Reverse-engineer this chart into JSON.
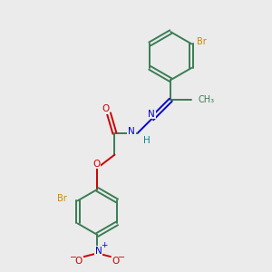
{
  "bg_color": "#ebebeb",
  "bond_color": "#3a7d54",
  "bond_width": 1.4,
  "atom_colors": {
    "Br": "#cc8800",
    "N": "#0000cc",
    "O": "#cc0000",
    "H": "#008b8b",
    "C": "#3a7d54"
  },
  "figsize": [
    3.0,
    3.0
  ],
  "dpi": 100
}
